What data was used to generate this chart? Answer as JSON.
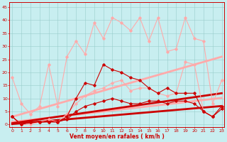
{
  "x": [
    0,
    1,
    2,
    3,
    4,
    5,
    6,
    7,
    8,
    9,
    10,
    11,
    12,
    13,
    14,
    15,
    16,
    17,
    18,
    19,
    20,
    21,
    22,
    23
  ],
  "series": [
    {
      "label": "gust_light",
      "color": "#ffaaaa",
      "linewidth": 0.8,
      "marker": "D",
      "markersize": 1.8,
      "y": [
        18,
        8,
        4,
        7,
        23,
        7,
        26,
        32,
        27,
        39,
        33,
        41,
        39,
        36,
        41,
        32,
        41,
        28,
        29,
        41,
        33,
        32,
        8,
        17
      ]
    },
    {
      "label": "mean_light",
      "color": "#ffaaaa",
      "linewidth": 0.8,
      "marker": "D",
      "markersize": 1.8,
      "y": [
        3,
        0,
        0,
        1,
        2,
        1,
        4,
        8,
        11,
        13,
        14,
        16,
        17,
        13,
        14,
        14,
        12,
        11,
        12,
        24,
        23,
        5,
        3,
        7
      ]
    },
    {
      "label": "trend_gust_light",
      "color": "#ffaaaa",
      "linewidth": 2.0,
      "marker": null,
      "y": [
        3.0,
        4.0,
        5.0,
        6.0,
        7.0,
        8.0,
        9.0,
        10.0,
        11.0,
        12.0,
        13.0,
        14.0,
        15.0,
        16.0,
        17.0,
        18.0,
        19.0,
        20.0,
        21.0,
        22.0,
        23.0,
        24.0,
        25.0,
        26.0
      ]
    },
    {
      "label": "trend_mean_light",
      "color": "#ffaaaa",
      "linewidth": 2.0,
      "marker": null,
      "y": [
        1.0,
        1.4,
        1.8,
        2.2,
        2.6,
        3.0,
        3.4,
        3.8,
        4.2,
        4.6,
        5.0,
        5.4,
        5.8,
        6.2,
        6.6,
        7.0,
        7.4,
        7.8,
        8.2,
        8.6,
        9.0,
        9.4,
        9.8,
        10.2
      ]
    },
    {
      "label": "gust_dark",
      "color": "#cc0000",
      "linewidth": 0.8,
      "marker": "D",
      "markersize": 1.8,
      "y": [
        3,
        0,
        1,
        1,
        1,
        1,
        3,
        10,
        16,
        15,
        23,
        21,
        20,
        18,
        17,
        14,
        12,
        14,
        12,
        12,
        12,
        5,
        3,
        7
      ]
    },
    {
      "label": "mean_dark",
      "color": "#cc0000",
      "linewidth": 0.8,
      "marker": "D",
      "markersize": 1.8,
      "y": [
        3,
        0,
        1,
        1,
        1,
        1,
        2,
        5,
        7,
        8,
        9,
        10,
        9,
        8,
        8,
        9,
        9,
        8,
        9,
        9,
        8,
        5,
        3,
        6
      ]
    },
    {
      "label": "trend_dark_gust",
      "color": "#cc0000",
      "linewidth": 2.0,
      "marker": null,
      "y": [
        0.5,
        1.0,
        1.5,
        2.0,
        2.5,
        3.0,
        3.5,
        4.0,
        4.5,
        5.0,
        5.5,
        6.0,
        6.5,
        7.0,
        7.5,
        8.0,
        8.5,
        9.0,
        9.5,
        10.0,
        10.5,
        11.0,
        11.5,
        12.0
      ]
    },
    {
      "label": "trend_dark_mean",
      "color": "#cc0000",
      "linewidth": 2.0,
      "marker": null,
      "y": [
        0.2,
        0.5,
        0.8,
        1.1,
        1.4,
        1.7,
        2.0,
        2.3,
        2.6,
        2.9,
        3.2,
        3.5,
        3.8,
        4.1,
        4.4,
        4.7,
        5.0,
        5.3,
        5.6,
        5.9,
        6.2,
        6.5,
        6.8,
        7.1
      ]
    }
  ],
  "xlabel": "Vent moyen/en rafales ( km/h )",
  "xlim": [
    -0.3,
    23.3
  ],
  "ylim": [
    -1,
    47
  ],
  "yticks": [
    0,
    5,
    10,
    15,
    20,
    25,
    30,
    35,
    40,
    45
  ],
  "xticks": [
    0,
    1,
    2,
    3,
    4,
    5,
    6,
    7,
    8,
    9,
    10,
    11,
    12,
    13,
    14,
    15,
    16,
    17,
    18,
    19,
    20,
    21,
    22,
    23
  ],
  "bg_color": "#c8eef0",
  "grid_color": "#99cccc",
  "text_color": "#cc0000",
  "tick_color": "#cc0000"
}
